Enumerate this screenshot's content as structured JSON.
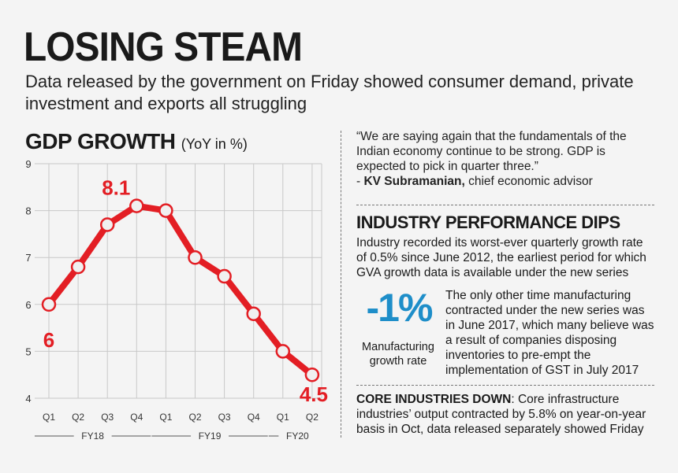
{
  "headline": "LOSING STEAM",
  "subheadline": "Data released by the government on Friday showed consumer demand, private investment and exports all struggling",
  "gdp": {
    "title": "GDP GROWTH",
    "unit": "(YoY in %)"
  },
  "quote": {
    "text": "“We are saying again that the fundamentals of the Indian economy continue to be strong. GDP is expected to pick in quarter three.”",
    "prefix": "- ",
    "author": "KV Subramanian,",
    "role": " chief economic advisor"
  },
  "industry": {
    "heading": "INDUSTRY PERFORMANCE DIPS",
    "body": "Industry recorded its worst-ever quarterly growth rate of 0.5% since June 2012, the earliest period for which GVA growth data is available under the new series",
    "stat_value": "-1%",
    "stat_label": "Manufacturing growth rate",
    "stat_text": "The only other time manufacturing contracted under the new series was in June 2017, which many believe was a result of companies disposing inventories to pre-empt the implementation of GST in July 2017"
  },
  "core": {
    "label": "CORE INDUSTRIES DOWN",
    "text": ": Core infrastructure industries’ output contracted by 5.8% on year-on-year basis in Oct, data released separately showed Friday"
  },
  "colors": {
    "line": "#e31e24",
    "accent": "#1e8ec9",
    "text": "#1a1a1a",
    "grid": "#c8c8c8"
  },
  "chart_data": {
    "type": "line",
    "title": "GDP GROWTH",
    "ylabel": "(YoY in %)",
    "xlabel": "",
    "categories": [
      "Q1",
      "Q2",
      "Q3",
      "Q4",
      "Q1",
      "Q2",
      "Q3",
      "Q4",
      "Q1",
      "Q2"
    ],
    "groups": [
      {
        "name": "FY18",
        "from": 0,
        "to": 3
      },
      {
        "name": "FY19",
        "from": 4,
        "to": 7
      },
      {
        "name": "FY20",
        "from": 8,
        "to": 9
      }
    ],
    "series": [
      {
        "name": "GDP growth",
        "values": [
          6.0,
          6.8,
          7.7,
          8.1,
          8.0,
          7.0,
          6.6,
          5.8,
          5.0,
          4.5
        ]
      }
    ],
    "labels": [
      {
        "index": 0,
        "text": "6"
      },
      {
        "index": 3,
        "text": "8.1"
      },
      {
        "index": 9,
        "text": "4.5"
      }
    ],
    "ylim": [
      4,
      9
    ],
    "yticks": [
      4,
      5,
      6,
      7,
      8,
      9
    ],
    "grid": true
  }
}
